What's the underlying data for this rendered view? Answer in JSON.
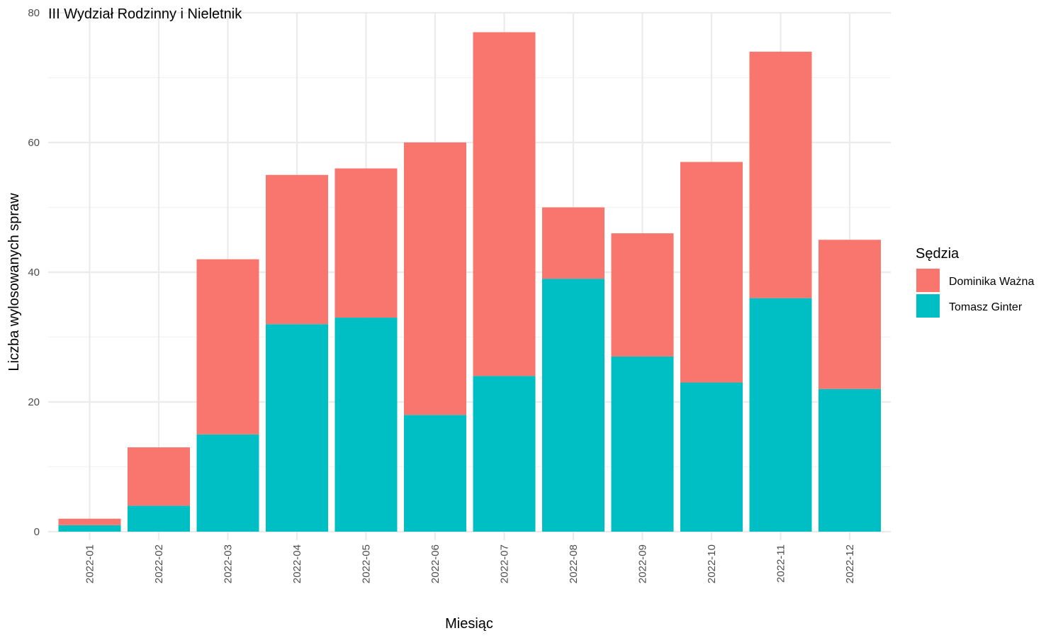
{
  "chart_data": {
    "type": "bar",
    "stacked": true,
    "title": "III Wydział Rodzinny i Nieletnik",
    "xlabel": "Miesiąc",
    "ylabel": "Liczba wylosowanych spraw",
    "ylim": [
      0,
      80
    ],
    "yticks": [
      0,
      20,
      40,
      60,
      80
    ],
    "grid": true,
    "legend_position": "right",
    "legend_title": "Sędzia",
    "categories": [
      "2022-01",
      "2022-02",
      "2022-03",
      "2022-04",
      "2022-05",
      "2022-06",
      "2022-07",
      "2022-08",
      "2022-09",
      "2022-10",
      "2022-11",
      "2022-12"
    ],
    "series": [
      {
        "name": "Dominika Ważna",
        "color": "#F8766D",
        "values": [
          1,
          9,
          27,
          23,
          23,
          42,
          53,
          11,
          19,
          34,
          38,
          23
        ]
      },
      {
        "name": "Tomasz Ginter",
        "color": "#00BFC4",
        "values": [
          1,
          4,
          15,
          32,
          33,
          18,
          24,
          39,
          27,
          23,
          36,
          22
        ]
      }
    ]
  }
}
